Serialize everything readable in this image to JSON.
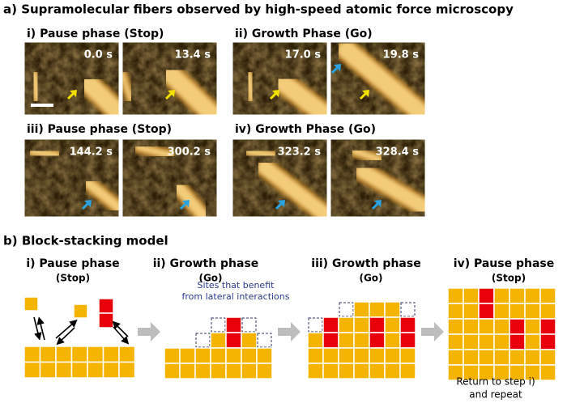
{
  "section_a": {
    "title": "a) Supramolecular fibers observed by high-speed atomic force microscopy",
    "panels": [
      {
        "label": "i) Pause phase (Stop)",
        "times": [
          "0.0 s",
          "13.4 s"
        ]
      },
      {
        "label": "ii) Growth Phase (Go)",
        "times": [
          "17.0 s",
          "19.8 s"
        ]
      },
      {
        "label": "iii) Pause phase (Stop)",
        "times": [
          "144.2 s",
          "300.2 s"
        ]
      },
      {
        "label": "iv) Growth Phase (Go)",
        "times": [
          "323.2 s",
          "328.4 s"
        ]
      }
    ]
  },
  "section_b": {
    "title": "b) Block-stacking model",
    "stages": [
      {
        "label": "i) Pause phase",
        "sub": "(Stop)"
      },
      {
        "label": "ii) Growth phase",
        "sub": "(Go)"
      },
      {
        "label": "iii) Growth phase",
        "sub": "(Go)"
      },
      {
        "label": "iv) Pause phase",
        "sub": "(Stop)"
      }
    ],
    "annotation": [
      "Sites that benefit",
      "from lateral interactions"
    ],
    "footer": [
      "Return to step i)",
      "and repeat"
    ]
  }
}
